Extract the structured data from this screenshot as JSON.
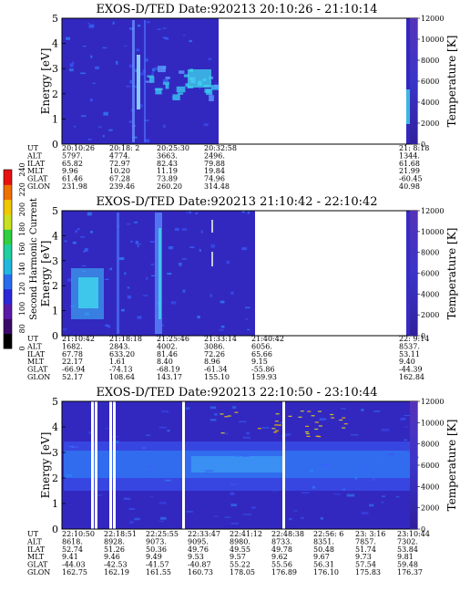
{
  "chart_data": [
    {
      "type": "heatmap",
      "title": "EXOS-D/TED   Date:920213  20:10:26 - 21:10:14",
      "ylabel": "Energy [eV]",
      "ylim": [
        0,
        5
      ],
      "y_ticks": [
        "0",
        "1",
        "2",
        "3",
        "4",
        "5"
      ],
      "colorbar_label": "Temperature [K]",
      "colorbar_ticks": [
        "0",
        "2000",
        "4000",
        "6000",
        "8000",
        "10000",
        "12000"
      ],
      "colorbar_range": [
        0,
        12000
      ],
      "row_labels": [
        "UT",
        "ALT",
        "ILAT",
        "MLT",
        "GLAT",
        "GLON"
      ],
      "columns": [
        [
          "20:10:26",
          "5797.",
          "65.82",
          "9.96",
          "61.46",
          "231.98"
        ],
        [
          "20:18: 2",
          "4774.",
          "72.97",
          "10.20",
          "67.28",
          "239.46"
        ],
        [
          "20:25:30",
          "3663.",
          "82.43",
          "11.19",
          "73.89",
          "260.20"
        ],
        [
          "20:32:58",
          "2496.",
          "79.88",
          "19.84",
          "74.96",
          "314.48"
        ],
        [
          "21: 8:18",
          "1344.",
          "61.68",
          "21.99",
          "-60.45",
          "40.98"
        ]
      ]
    },
    {
      "type": "heatmap",
      "title": "EXOS-D/TED   Date:920213  21:10:42 - 22:10:42",
      "ylabel": "Energy [eV]",
      "ylim": [
        0,
        5
      ],
      "y_ticks": [
        "0",
        "1",
        "2",
        "3",
        "4",
        "5"
      ],
      "colorbar_label": "Temperature [K]",
      "colorbar_ticks": [
        "0",
        "2000",
        "4000",
        "6000",
        "8000",
        "10000",
        "12000"
      ],
      "colorbar_range": [
        0,
        12000
      ],
      "row_labels": [
        "UT",
        "ALT",
        "ILAT",
        "MLT",
        "GLAT",
        "GLON"
      ],
      "columns": [
        [
          "21:10:42",
          "1682.",
          "67.78",
          "22.17",
          "-66.94",
          "52.17"
        ],
        [
          "21:18:18",
          "2843.",
          "633.20",
          "1.61",
          "-74.13",
          "108.64"
        ],
        [
          "21:25:46",
          "4002.",
          "81.46",
          "8.40",
          "-68.19",
          "143.17"
        ],
        [
          "21:33:14",
          "3086.",
          "72.26",
          "8.96",
          "-61.34",
          "155.10"
        ],
        [
          "21:40:42",
          "6056.",
          "65.66",
          "9.15",
          "-55.86",
          "159.93"
        ],
        [
          "22: 9:14",
          "8537.",
          "53.11",
          "9.40",
          "-44.39",
          "162.84"
        ]
      ]
    },
    {
      "type": "heatmap",
      "title": "EXOS-D/TED   Date:920213  22:10:50 - 23:10:44",
      "ylabel": "Energy [eV]",
      "ylim": [
        0,
        5
      ],
      "y_ticks": [
        "0",
        "1",
        "2",
        "3",
        "4",
        "5"
      ],
      "colorbar_label": "Temperature [K]",
      "colorbar_ticks": [
        "0",
        "2000",
        "4000",
        "6000",
        "8000",
        "10000",
        "12000"
      ],
      "colorbar_range": [
        0,
        12000
      ],
      "row_labels": [
        "UT",
        "ALT",
        "ILAT",
        "MLT",
        "GLAT",
        "GLON"
      ],
      "columns": [
        [
          "22:10:50",
          "8618.",
          "52.74",
          "9.41",
          "-44.03",
          "162.75"
        ],
        [
          "22:18:51",
          "8928.",
          "51.26",
          "9.46",
          "-42.53",
          "162.19"
        ],
        [
          "22:25:55",
          "9073.",
          "50.36",
          "9.49",
          "-41.57",
          "161.55"
        ],
        [
          "22:33:47",
          "9095.",
          "49.76",
          "9.53",
          "-40.87",
          "160.73"
        ],
        [
          "22:41:12",
          "8980.",
          "49.55",
          "9.57",
          "55.22",
          "178.05"
        ],
        [
          "22:48:38",
          "8733.",
          "49.78",
          "9.62",
          "55.56",
          "176.89"
        ],
        [
          "22:56: 6",
          "8351.",
          "50.48",
          "9.67",
          "56.31",
          "176.10"
        ],
        [
          "23: 3:16",
          "7857.",
          "51.74",
          "9.73",
          "57.54",
          "175.83"
        ],
        [
          "23:10:44",
          "7302.",
          "53.84",
          "9.81",
          "59.48",
          "176.37"
        ]
      ]
    }
  ],
  "side_colorbar": {
    "label": "Second Harmonic Current",
    "ticks": [
      "0",
      "80",
      "100",
      "120",
      "140",
      "160",
      "180",
      "200",
      "220",
      "240"
    ]
  },
  "colors": {
    "background": "#3228c0",
    "band": "#3c64ff",
    "bright": "#40e0f0",
    "low": "#6a2aa8"
  }
}
